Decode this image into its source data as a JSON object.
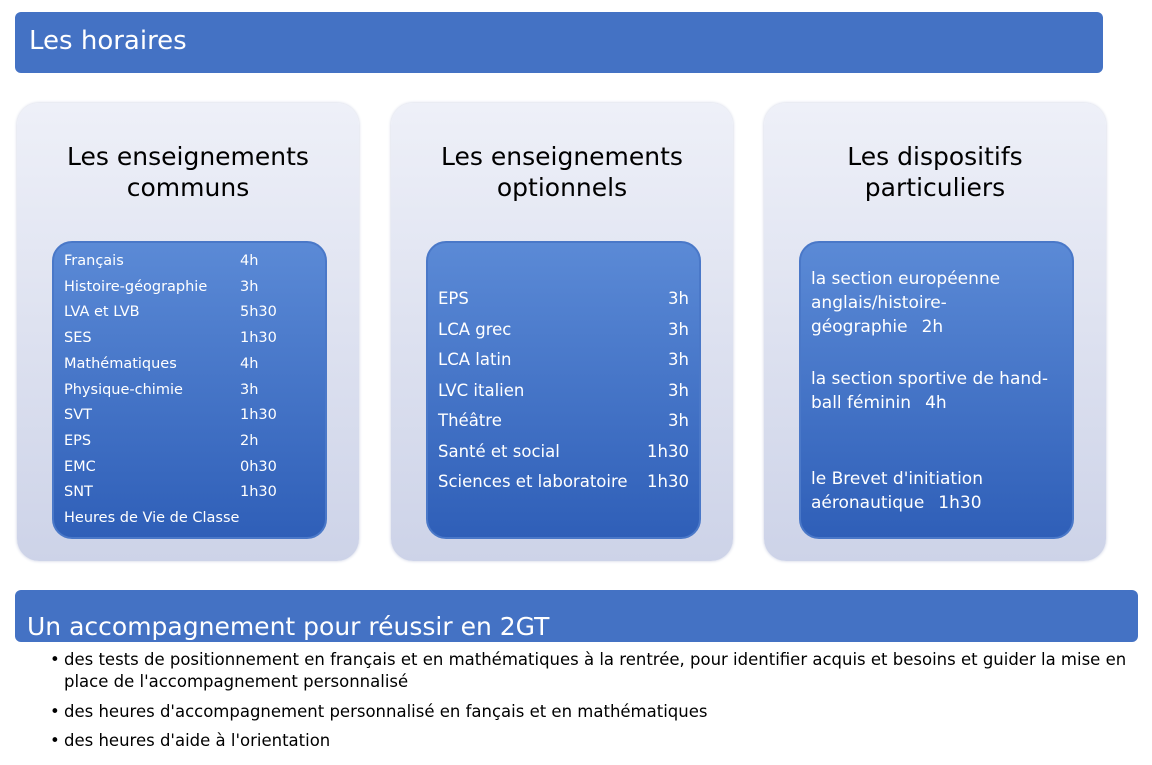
{
  "header": {
    "title": "Les horaires"
  },
  "columns": [
    {
      "title": "Les enseignements communs",
      "items": [
        {
          "label": "Français",
          "hours": "4h"
        },
        {
          "label": "Histoire-géographie",
          "hours": "3h"
        },
        {
          "label": "LVA et LVB",
          "hours": "5h30"
        },
        {
          "label": "SES",
          "hours": "1h30"
        },
        {
          "label": "Mathématiques",
          "hours": "4h"
        },
        {
          "label": "Physique-chimie",
          "hours": "3h"
        },
        {
          "label": "SVT",
          "hours": "1h30"
        },
        {
          "label": "EPS",
          "hours": "2h"
        },
        {
          "label": "EMC",
          "hours": "0h30"
        },
        {
          "label": "SNT",
          "hours": "1h30"
        },
        {
          "label": "Heures de Vie de Classe"
        }
      ]
    },
    {
      "title": "Les enseignements optionnels",
      "items": [
        {
          "label": "EPS",
          "hours": "3h"
        },
        {
          "label": "LCA grec",
          "hours": "3h"
        },
        {
          "label": "LCA latin",
          "hours": "3h"
        },
        {
          "label": "LVC italien",
          "hours": "3h"
        },
        {
          "label": "Théâtre",
          "hours": "3h"
        },
        {
          "label": "Santé et social",
          "hours": "1h30"
        },
        {
          "label": "Sciences et laboratoire",
          "hours": "1h30"
        }
      ]
    },
    {
      "title": "Les dispositifs particuliers",
      "items": [
        {
          "label": "la section européenne anglais/histoire-géographie",
          "hours": "2h"
        },
        {
          "label": "la section sportive de hand-ball féminin",
          "hours": "4h"
        },
        {
          "label": "le Brevet d'initiation aéronautique",
          "hours": "1h30"
        }
      ]
    }
  ],
  "footer": {
    "title": "Un accompagnement pour réussir en 2GT",
    "bullets": [
      "des tests de positionnement en français et en mathématiques à la rentrée, pour identifier acquis et besoins et guider la mise en place de l'accompagnement personnalisé",
      "des heures d'accompagnement personnalisé en fançais et en mathématiques",
      "des heures d'aide à l'orientation"
    ]
  }
}
